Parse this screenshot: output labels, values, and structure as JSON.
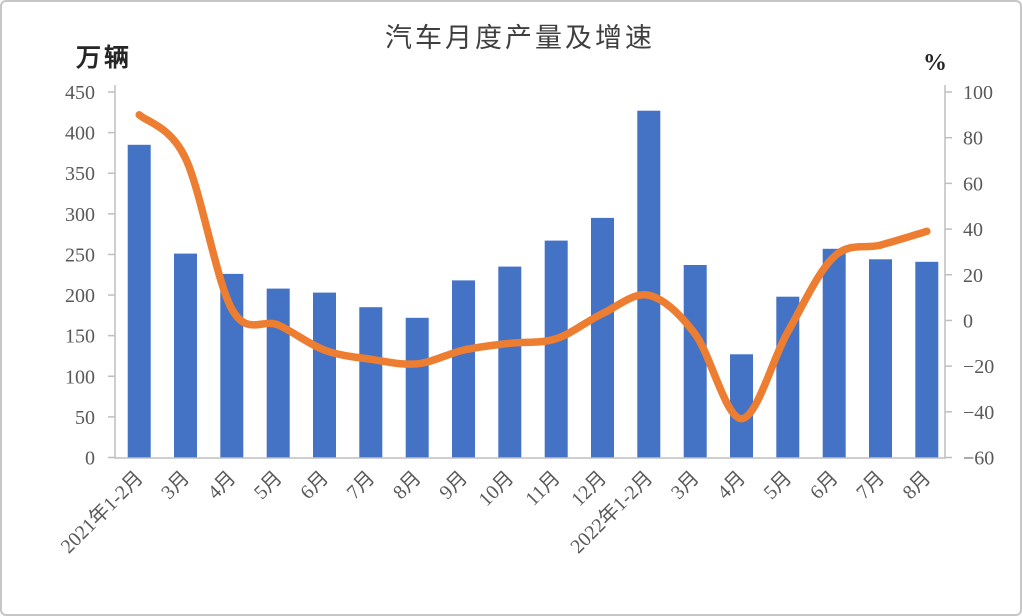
{
  "chart_data": {
    "type": "bar+line",
    "title": "汽车月度产量及增速",
    "categories": [
      "2021年1-2月",
      "3月",
      "4月",
      "5月",
      "6月",
      "7月",
      "8月",
      "9月",
      "10月",
      "11月",
      "12月",
      "2022年1-2月",
      "3月",
      "4月",
      "5月",
      "6月",
      "7月",
      "8月"
    ],
    "series": [
      {
        "id": "production",
        "type": "bar",
        "axis": "left",
        "color": "#4472C4",
        "values": [
          385,
          251,
          226,
          208,
          203,
          185,
          172,
          218,
          235,
          267,
          295,
          427,
          237,
          127,
          198,
          257,
          244,
          241
        ]
      },
      {
        "id": "growth_rate",
        "type": "line",
        "axis": "right",
        "color": "#ED7D31",
        "values": [
          90,
          71,
          5,
          -2,
          -13,
          -17,
          -19,
          -13,
          -10,
          -8,
          3,
          11,
          -6,
          -43,
          -5,
          28,
          33,
          39
        ]
      }
    ],
    "left_axis": {
      "label": "万辆",
      "min": 0,
      "max": 450,
      "step": 50,
      "tick_labels": [
        "0",
        "50",
        "100",
        "150",
        "200",
        "250",
        "300",
        "350",
        "400",
        "450"
      ]
    },
    "right_axis": {
      "label": "%",
      "min": -60,
      "max": 100,
      "step": 20,
      "tick_labels": [
        "−60",
        "−40",
        "−20",
        "0",
        "20",
        "40",
        "60",
        "80",
        "100"
      ]
    },
    "grid": false,
    "legend": "none",
    "x_label_rotation": -45
  },
  "colors": {
    "bar": "#4472C4",
    "line": "#ED7D31",
    "axis_line": "#BFBFBF",
    "tick_text": "#595959",
    "title_text": "#3F3F3F",
    "unit_text": "#262626",
    "background": "#FFFFFF",
    "border": "#C6C6C6"
  }
}
